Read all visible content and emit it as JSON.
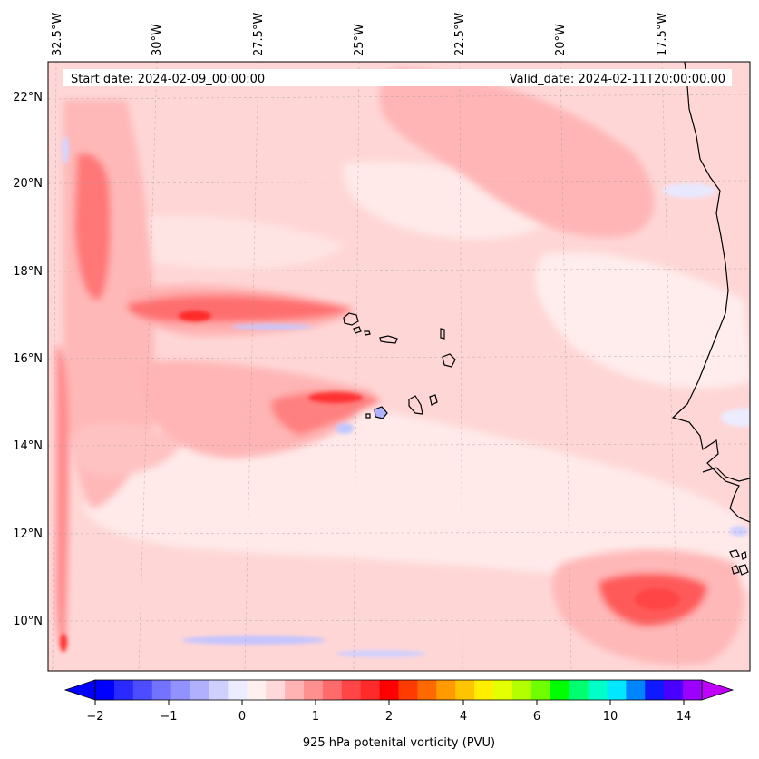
{
  "header": {
    "start_date": "Start date: 2024-02-09_00:00:00",
    "valid_date": "Valid_date: 2024-02-11T20:00:00.00"
  },
  "map": {
    "longitude_labels": [
      "32.5°W",
      "30°W",
      "27.5°W",
      "25°W",
      "22.5°W",
      "20°W",
      "17.5°W"
    ],
    "latitude_labels": [
      "22°N",
      "20°N",
      "18°N",
      "16°N",
      "14°N",
      "12°N",
      "10°N"
    ],
    "gridlines": true,
    "coastline_color": "#000000"
  },
  "colorbar": {
    "title": "925 hPa potenital vorticity (PVU)",
    "tick_labels": [
      "−2",
      "−1",
      "0",
      "1",
      "2",
      "4",
      "6",
      "10",
      "14"
    ],
    "extend": "both",
    "colors": [
      "#0000ff",
      "#2a2aff",
      "#4d4dff",
      "#7373ff",
      "#9191ff",
      "#b0b0ff",
      "#d0d0ff",
      "#ececff",
      "#fff0f0",
      "#ffd9d9",
      "#ffb3b3",
      "#ff9090",
      "#ff6b6b",
      "#ff4545",
      "#ff2a2a",
      "#ff0000",
      "#ff3b00",
      "#ff6a00",
      "#ff9a00",
      "#ffc400",
      "#ffee00",
      "#e4ff00",
      "#b3ff00",
      "#6fff00",
      "#00ff00",
      "#00ff70",
      "#00ffc8",
      "#00e7ff",
      "#0084ff",
      "#1018ff",
      "#4a00ff",
      "#9c00ff"
    ],
    "under_color": "#0000ff",
    "over_color": "#c000ff"
  }
}
